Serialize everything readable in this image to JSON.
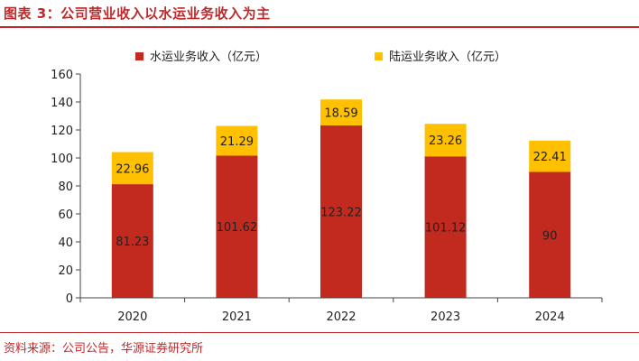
{
  "header": {
    "figure_title": "图表 3：公司营业收入以水运业务收入为主"
  },
  "footer": {
    "source": "资料来源：公司公告，华源证券研究所"
  },
  "colors": {
    "accent": "#c0292b",
    "water": "#c32a1f",
    "land": "#ffc000"
  },
  "chart_data": {
    "type": "bar",
    "stacked": true,
    "categories": [
      "2020",
      "2021",
      "2022",
      "2023",
      "2024"
    ],
    "series": [
      {
        "name": "水运业务收入（亿元）",
        "values": [
          81.23,
          101.62,
          123.22,
          101.12,
          90
        ]
      },
      {
        "name": "陆运业务收入（亿元）",
        "values": [
          22.96,
          21.29,
          18.59,
          23.26,
          22.41
        ]
      }
    ],
    "data_labels": [
      [
        "81.23",
        "101.62",
        "123.22",
        "101.12",
        "90"
      ],
      [
        "22.96",
        "21.29",
        "18.59",
        "23.26",
        "22.41"
      ]
    ],
    "ylim": [
      0,
      160
    ],
    "yticks": [
      0,
      20,
      40,
      60,
      80,
      100,
      120,
      140,
      160
    ],
    "legend_position": "top-center",
    "grid": false,
    "title": "",
    "xlabel": "",
    "ylabel": ""
  }
}
